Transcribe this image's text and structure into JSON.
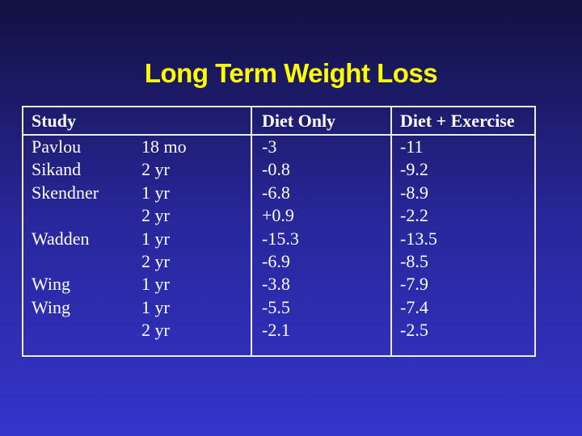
{
  "slide": {
    "title": "Long Term Weight Loss"
  },
  "colors": {
    "title_text": "#FFFF00",
    "background_top": "#121140",
    "background_middle": "#29279B",
    "background_bottom": "#3434CB",
    "table_border": "#ECECEC",
    "table_text": "#FFFFFF"
  },
  "table": {
    "headers": [
      "Study",
      "Diet Only",
      "Diet + Exercise"
    ],
    "rows": [
      {
        "study": "Pavlou",
        "duration": "18 mo",
        "diet_only": "-3",
        "diet_exercise": "-11"
      },
      {
        "study": "Sikand",
        "duration": "2 yr",
        "diet_only": "-0.8",
        "diet_exercise": "-9.2"
      },
      {
        "study": "Skendner",
        "duration": "1 yr",
        "diet_only": "-6.8",
        "diet_exercise": "-8.9"
      },
      {
        "study": "",
        "duration": "2 yr",
        "diet_only": "+0.9",
        "diet_exercise": "-2.2"
      },
      {
        "study": "Wadden",
        "duration": "1 yr",
        "diet_only": "-15.3",
        "diet_exercise": "-13.5"
      },
      {
        "study": "",
        "duration": "2 yr",
        "diet_only": "-6.9",
        "diet_exercise": "-8.5"
      },
      {
        "study": "Wing",
        "duration": "1 yr",
        "diet_only": "-3.8",
        "diet_exercise": "-7.9"
      },
      {
        "study": "Wing",
        "duration": "1 yr",
        "diet_only": "-5.5",
        "diet_exercise": "-7.4"
      },
      {
        "study": "",
        "duration": "2 yr",
        "diet_only": "-2.1",
        "diet_exercise": "-2.5"
      }
    ]
  }
}
